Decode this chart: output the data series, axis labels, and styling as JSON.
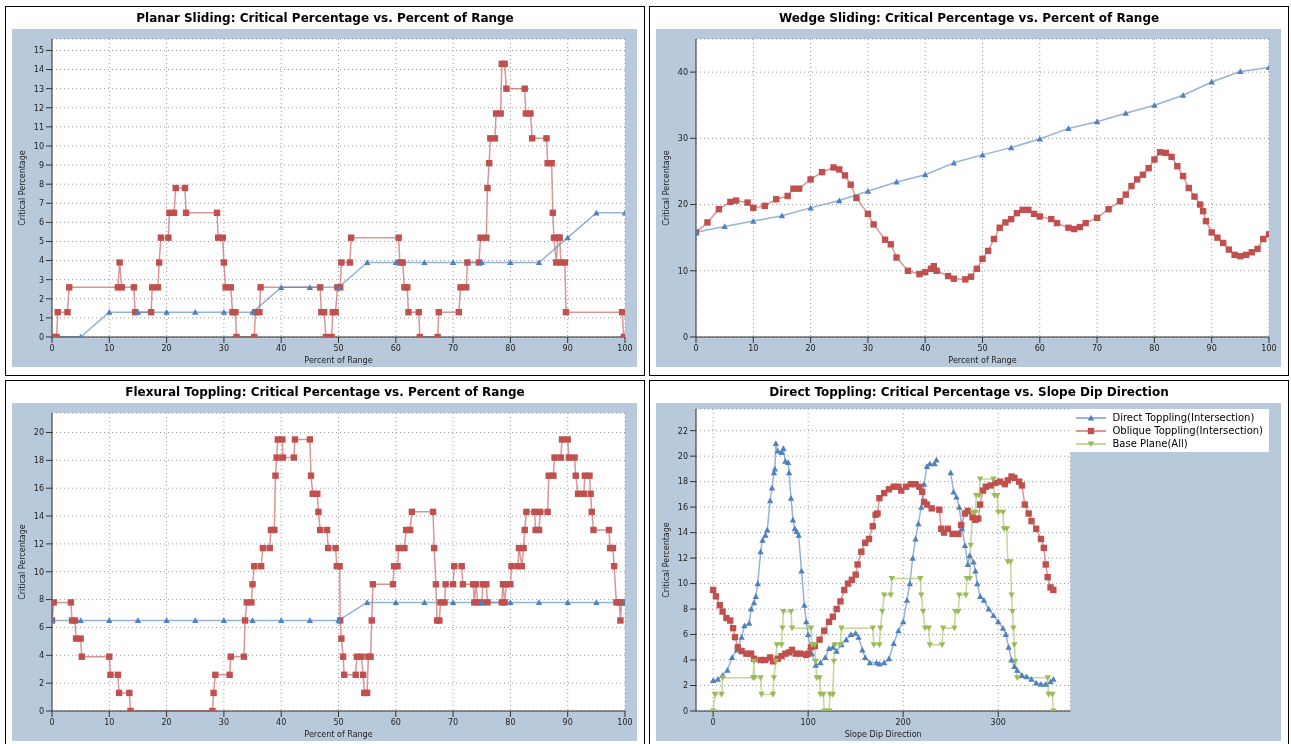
{
  "chart_data": [
    {
      "type": "line",
      "title": "Planar Sliding: Critical Percentage vs. Percent of Range",
      "xlabel": "Percent of Range",
      "ylabel": "Critical Percentage",
      "xlim": [
        0,
        100
      ],
      "xticks": [
        0,
        10,
        20,
        30,
        40,
        50,
        60,
        70,
        80,
        90,
        100
      ],
      "ylim": [
        0,
        15.6
      ],
      "yticks": [
        0,
        1,
        2,
        3,
        4,
        5,
        6,
        7,
        8,
        9,
        10,
        11,
        12,
        13,
        14,
        15
      ],
      "grid": true,
      "legend": false,
      "series": [
        {
          "color": "#c0504d",
          "marker": "square",
          "x": [
            0,
            0.8,
            1,
            2.7,
            3,
            11.5,
            11.8,
            12.2,
            14.3,
            14.5,
            17.3,
            17.5,
            18.5,
            18.7,
            19,
            20.3,
            20.5,
            21.3,
            21.6,
            23.2,
            23.4,
            28.8,
            29,
            29.8,
            30,
            30.3,
            31.2,
            31.5,
            32,
            32.2,
            35.3,
            35.5,
            36.2,
            36.4,
            46.8,
            47,
            47.5,
            47.8,
            48.8,
            49,
            49.5,
            49.8,
            50.3,
            50.5,
            52,
            52.2,
            60.5,
            60.7,
            61.2,
            61.5,
            62,
            62.2,
            64,
            64.2,
            67.3,
            67.5,
            71,
            71.3,
            72.3,
            72.5,
            74.5,
            74.8,
            75.8,
            76,
            76.3,
            76.5,
            77.3,
            77.5,
            78.3,
            78.5,
            79,
            79.3,
            82.5,
            82.7,
            83.5,
            83.8,
            86.3,
            86.5,
            87.2,
            87.4,
            87.6,
            88,
            88.3,
            88.6,
            88.8,
            89.5,
            89.7,
            99.5,
            99.8,
            100
          ],
          "values": [
            0,
            0,
            1.3,
            1.3,
            2.6,
            2.6,
            3.9,
            2.6,
            2.6,
            1.3,
            1.3,
            2.6,
            2.6,
            3.9,
            5.2,
            5.2,
            6.5,
            6.5,
            7.8,
            7.8,
            6.5,
            6.5,
            5.2,
            5.2,
            3.9,
            2.6,
            2.6,
            1.3,
            1.3,
            0,
            0,
            1.3,
            1.3,
            2.6,
            2.6,
            1.3,
            1.3,
            0,
            0,
            1.3,
            1.3,
            2.6,
            2.6,
            3.9,
            3.9,
            5.2,
            5.2,
            3.9,
            3.9,
            2.6,
            2.6,
            1.3,
            1.3,
            0,
            0,
            1.3,
            1.3,
            2.6,
            2.6,
            3.9,
            3.9,
            5.2,
            5.2,
            7.8,
            9.1,
            10.4,
            10.4,
            11.7,
            11.7,
            14.3,
            14.3,
            13,
            13,
            11.7,
            11.7,
            10.4,
            10.4,
            9.1,
            9.1,
            6.5,
            5.2,
            3.9,
            5.2,
            5.2,
            3.9,
            3.9,
            1.3,
            1.3,
            0,
            0
          ]
        },
        {
          "color": "#4f81bd",
          "marker": "triangle",
          "x": [
            0,
            5,
            10,
            15,
            20,
            25,
            30,
            35,
            40,
            45,
            50,
            55,
            60,
            65,
            70,
            75,
            80,
            85,
            90,
            95,
            100
          ],
          "values": [
            0,
            0,
            1.3,
            1.3,
            1.3,
            1.3,
            1.3,
            1.3,
            2.6,
            2.6,
            2.6,
            3.9,
            3.9,
            3.9,
            3.9,
            3.9,
            3.9,
            3.9,
            5.2,
            6.5,
            6.5
          ]
        }
      ]
    },
    {
      "type": "line",
      "title": "Wedge Sliding: Critical Percentage vs. Percent of Range",
      "xlabel": "Percent of Range",
      "ylabel": "Critical Percentage",
      "xlim": [
        0,
        100
      ],
      "xticks": [
        0,
        10,
        20,
        30,
        40,
        50,
        60,
        70,
        80,
        90,
        100
      ],
      "ylim": [
        0,
        45
      ],
      "yticks": [
        0,
        10,
        20,
        30,
        40
      ],
      "grid": true,
      "legend": false,
      "series": [
        {
          "color": "#c0504d",
          "marker": "square",
          "x": [
            0,
            2,
            4,
            6,
            7,
            9,
            10,
            12,
            14,
            16,
            17,
            18,
            20,
            22,
            24,
            25,
            26,
            27,
            28,
            30,
            31,
            33,
            34,
            35,
            37,
            39,
            40,
            41,
            41.5,
            42,
            44,
            45,
            47,
            48,
            49,
            50,
            51,
            52,
            53,
            54,
            55,
            56,
            57,
            58,
            59,
            60,
            62,
            63,
            65,
            66,
            67,
            68,
            70,
            72,
            74,
            75,
            76,
            77,
            78,
            79,
            80,
            81,
            82,
            83,
            84,
            85,
            86,
            87,
            88,
            88.5,
            89,
            90,
            91,
            92,
            93,
            94,
            95,
            96,
            97,
            98,
            99,
            100
          ],
          "values": [
            15.8,
            17.3,
            19.3,
            20.4,
            20.6,
            20.3,
            19.5,
            19.8,
            20.8,
            21.3,
            22.4,
            22.4,
            23.8,
            24.9,
            25.6,
            25.3,
            24.4,
            23,
            21,
            18.6,
            17,
            14.7,
            14,
            12,
            10,
            9.5,
            9.8,
            10.3,
            10.7,
            10,
            9.2,
            8.8,
            8.7,
            9.1,
            10.3,
            11.8,
            13,
            14.8,
            16.5,
            17.3,
            17.8,
            18.7,
            19.2,
            19.2,
            18.6,
            18.2,
            17.8,
            17.2,
            16.5,
            16.3,
            16.6,
            17.2,
            18,
            19.3,
            20.5,
            21.5,
            22.8,
            23.8,
            24.5,
            25.5,
            26.8,
            27.9,
            27.8,
            27.2,
            25.8,
            24.3,
            22.5,
            21.2,
            20,
            19,
            17.5,
            15.8,
            15,
            14.2,
            13.2,
            12.4,
            12.2,
            12.4,
            12.8,
            13.3,
            14.8,
            15.5
          ]
        },
        {
          "color": "#4f81bd",
          "marker": "triangle",
          "x": [
            0,
            5,
            10,
            15,
            20,
            25,
            30,
            35,
            40,
            45,
            50,
            55,
            60,
            65,
            70,
            75,
            80,
            85,
            90,
            95,
            100
          ],
          "values": [
            15.8,
            16.7,
            17.5,
            18.3,
            19.5,
            20.6,
            22,
            23.4,
            24.5,
            26.3,
            27.5,
            28.6,
            29.9,
            31.5,
            32.5,
            33.8,
            35,
            36.5,
            38.5,
            40.1,
            40.7
          ]
        }
      ]
    },
    {
      "type": "line",
      "title": "Flexural Toppling: Critical Percentage vs. Percent of Range",
      "xlabel": "Percent of Range",
      "ylabel": "Critical Percentage",
      "xlim": [
        0,
        100
      ],
      "xticks": [
        0,
        10,
        20,
        30,
        40,
        50,
        60,
        70,
        80,
        90,
        100
      ],
      "ylim": [
        0,
        21.4
      ],
      "yticks": [
        0,
        2,
        4,
        6,
        8,
        10,
        12,
        14,
        16,
        18,
        20
      ],
      "grid": true,
      "legend": false,
      "series": [
        {
          "color": "#c0504d",
          "marker": "square",
          "x": [
            0,
            0.3,
            3.3,
            3.5,
            4,
            4.2,
            5,
            5.2,
            10,
            10.2,
            11.5,
            11.7,
            13.5,
            13.7,
            28,
            28.2,
            28.5,
            31,
            31.2,
            33.5,
            33.7,
            34,
            34.8,
            35,
            35.3,
            36.5,
            36.8,
            38,
            38.2,
            38.8,
            39,
            39.2,
            39.4,
            40.2,
            40.3,
            42.2,
            42.4,
            45,
            45.2,
            45.5,
            46.3,
            46.5,
            46.8,
            48,
            48.2,
            49.5,
            49.7,
            50.2,
            50.3,
            50.5,
            50.8,
            51,
            53,
            53.2,
            54,
            54.3,
            54.5,
            55,
            55.2,
            55.6,
            55.8,
            56,
            59.5,
            59.7,
            60.3,
            60.5,
            61.5,
            61.8,
            62.5,
            62.8,
            66.5,
            66.7,
            67,
            67.2,
            67.6,
            67.8,
            68.5,
            68.7,
            70,
            70.2,
            71.5,
            71.7,
            73.5,
            73.7,
            74,
            74.3,
            75,
            75.2,
            75.8,
            76,
            78.5,
            78.7,
            79,
            79.3,
            80,
            80.2,
            81.3,
            81.5,
            82,
            82.3,
            82.5,
            82.8,
            84.2,
            84.4,
            85,
            85.2,
            86.5,
            86.7,
            87.5,
            87.7,
            88.8,
            89,
            90,
            90.2,
            91.2,
            91.4,
            91.8,
            92.8,
            93,
            93.8,
            94,
            94.2,
            94.5,
            97.2,
            97.4,
            97.9,
            98.1,
            98.5,
            99,
            99.2,
            99.4,
            100
          ],
          "values": [
            6.5,
            7.8,
            7.8,
            6.5,
            6.5,
            5.2,
            5.2,
            3.9,
            3.9,
            2.6,
            2.6,
            1.3,
            1.3,
            0,
            0,
            1.3,
            2.6,
            2.6,
            3.9,
            3.9,
            6.5,
            7.8,
            7.8,
            9.1,
            10.4,
            10.4,
            11.7,
            11.7,
            13,
            13,
            16.9,
            18.2,
            19.5,
            19.5,
            18.2,
            18.2,
            19.5,
            19.5,
            16.9,
            15.6,
            15.6,
            14.3,
            13,
            13,
            11.7,
            11.7,
            10.4,
            10.4,
            6.5,
            5.2,
            3.9,
            2.6,
            2.6,
            3.9,
            3.9,
            2.6,
            1.3,
            1.3,
            3.9,
            3.9,
            6.5,
            9.1,
            9.1,
            10.4,
            10.4,
            11.7,
            11.7,
            13,
            13,
            14.3,
            14.3,
            11.7,
            9.1,
            6.5,
            6.5,
            7.8,
            7.8,
            9.1,
            9.1,
            10.4,
            10.4,
            9.1,
            9.1,
            7.8,
            9.1,
            7.8,
            7.8,
            9.1,
            9.1,
            7.8,
            7.8,
            9.1,
            7.8,
            9.1,
            9.1,
            10.4,
            10.4,
            11.7,
            10.4,
            11.7,
            13,
            14.3,
            14.3,
            13,
            13,
            14.3,
            14.3,
            16.9,
            16.9,
            18.2,
            18.2,
            19.5,
            19.5,
            18.2,
            18.2,
            16.9,
            15.6,
            15.6,
            16.9,
            16.9,
            15.6,
            14.3,
            13,
            13,
            11.7,
            11.7,
            10.4,
            7.8,
            7.8,
            6.5,
            7.8,
            7.8
          ]
        },
        {
          "color": "#4f81bd",
          "marker": "triangle",
          "x": [
            0,
            5,
            10,
            15,
            20,
            25,
            30,
            35,
            40,
            45,
            50,
            55,
            60,
            65,
            70,
            75,
            80,
            85,
            90,
            95,
            100
          ],
          "values": [
            6.5,
            6.5,
            6.5,
            6.5,
            6.5,
            6.5,
            6.5,
            6.5,
            6.5,
            6.5,
            6.5,
            7.8,
            7.8,
            7.8,
            7.8,
            7.8,
            7.8,
            7.8,
            7.8,
            7.8,
            7.8
          ]
        }
      ]
    },
    {
      "type": "line",
      "title": "Direct Toppling: Critical Percentage vs. Slope Dip Direction",
      "xlabel": "Slope Dip Direction",
      "ylabel": "Critical Percentage",
      "xlim": [
        -18,
        376
      ],
      "xticks": [
        0,
        100,
        200,
        300
      ],
      "ylim": [
        0,
        23.7
      ],
      "yticks": [
        0,
        2,
        4,
        6,
        8,
        10,
        12,
        14,
        16,
        18,
        20,
        22
      ],
      "grid": true,
      "legend": "top right",
      "series": [
        {
          "name": "Direct Toppling(Intersection)",
          "color": "#4f81bd",
          "marker": "triangle",
          "x": [
            0,
            5,
            10,
            15,
            20,
            25,
            30,
            33,
            38,
            40,
            43,
            45,
            47,
            50,
            52,
            55,
            57,
            60,
            62,
            64,
            65,
            66,
            68,
            72,
            74,
            76,
            79,
            80,
            82,
            84,
            86,
            88,
            90,
            93,
            96,
            98,
            100,
            102,
            104,
            108,
            113,
            118,
            122,
            126,
            130,
            135,
            140,
            145,
            150,
            153,
            157,
            160,
            165,
            172,
            175,
            180,
            185,
            190,
            195,
            200,
            204,
            207,
            210,
            213,
            216,
            219,
            222,
            225,
            228,
            233,
            235,
            242,
            250,
            253,
            256,
            259,
            262,
            265,
            268,
            270,
            274,
            276,
            278,
            281,
            285,
            290,
            295,
            300,
            305,
            308,
            311,
            314,
            317,
            320,
            325,
            330,
            335,
            340,
            345,
            350,
            355,
            358
          ],
          "values": [
            2.4,
            2.5,
            2.8,
            3.2,
            4.2,
            4.8,
            5.8,
            6.7,
            6.9,
            8,
            8.5,
            9,
            10,
            12.5,
            13.4,
            13.8,
            14.2,
            16.5,
            17.5,
            18.7,
            19,
            21,
            20.4,
            20.3,
            20.6,
            19.6,
            19.5,
            18.7,
            16.7,
            15,
            14.3,
            14.1,
            13.8,
            11,
            8.3,
            7,
            6,
            5,
            4.5,
            3.6,
            3.8,
            4.2,
            4.9,
            5,
            4.7,
            5.2,
            5.6,
            6,
            6.1,
            5.8,
            4.8,
            4.2,
            3.8,
            3.8,
            3.7,
            3.8,
            4.1,
            5.3,
            6.3,
            7,
            8.7,
            10,
            12,
            13.5,
            14.7,
            16,
            17.8,
            19.2,
            19.4,
            19.4,
            19.7,
            null,
            18.7,
            17.2,
            16.8,
            16,
            14.3,
            13,
            11.5,
            12.2,
            11.7,
            11,
            10,
            9,
            8.7,
            8,
            7.5,
            7,
            6.5,
            6,
            5,
            4,
            3.5,
            3.2,
            2.8,
            2.7,
            2.5,
            2.2,
            2.1,
            2.1,
            2.3,
            2.5
          ]
        },
        {
          "name": "Oblique Toppling(Intersection)",
          "color": "#c0504d",
          "marker": "square",
          "x": [
            0,
            3,
            7,
            10,
            14,
            18,
            21,
            23,
            26,
            30,
            35,
            40,
            43,
            50,
            55,
            60,
            63,
            68,
            72,
            76,
            80,
            83,
            87,
            92,
            98,
            100,
            103,
            107,
            112,
            117,
            122,
            126,
            130,
            134,
            138,
            142,
            146,
            150,
            152,
            156,
            160,
            164,
            168,
            171,
            173,
            175,
            180,
            185,
            190,
            195,
            198,
            203,
            208,
            213,
            217,
            220,
            222,
            225,
            230,
            238,
            240,
            243,
            247,
            252,
            258,
            261,
            265,
            268,
            273,
            276,
            279,
            281,
            284,
            287,
            292,
            297,
            302,
            307,
            310,
            314,
            317,
            322,
            325,
            328,
            332,
            335,
            340,
            345,
            348,
            350,
            352,
            355,
            358
          ],
          "values": [
            9.5,
            9,
            8.3,
            7.8,
            7.3,
            7.1,
            6.5,
            5.8,
            5,
            4.7,
            4.5,
            4.5,
            4.1,
            4,
            4,
            4.2,
            3.9,
            4.1,
            4.3,
            4.5,
            4.6,
            4.8,
            4.5,
            4.5,
            4.4,
            4.5,
            5,
            5.1,
            5.6,
            6.3,
            7,
            7.4,
            8,
            8.6,
            9.5,
            10,
            10.3,
            10.7,
            11.5,
            12.5,
            13.2,
            13.5,
            14.5,
            15.4,
            15.5,
            16.7,
            17.1,
            17.4,
            17.6,
            17.6,
            17.3,
            17.6,
            17.8,
            17.8,
            17.6,
            17.2,
            16.4,
            16.2,
            15.9,
            15.8,
            14.3,
            14,
            14.3,
            13.9,
            13.9,
            14.6,
            15.5,
            15.7,
            15.2,
            15,
            15.1,
            16.2,
            17.3,
            17.6,
            17.7,
            17.9,
            18,
            17.8,
            18.1,
            18.4,
            18.3,
            18,
            17.7,
            16.2,
            15.5,
            14.9,
            14.3,
            13.5,
            12.8,
            11.5,
            10.5,
            9.7,
            9.5
          ]
        },
        {
          "name": "Base Plane(All)",
          "color": "#9bbb59",
          "marker": "triangle-down",
          "x": [
            0,
            2,
            9,
            10,
            42,
            43,
            43.5,
            50,
            51,
            63,
            64,
            66,
            67,
            72,
            73,
            74,
            82,
            83,
            103,
            104,
            107,
            108,
            109,
            112,
            113,
            116,
            117,
            122,
            123,
            126,
            127,
            128,
            134,
            135,
            168,
            169,
            175,
            176,
            178,
            180,
            187,
            188,
            218,
            219,
            221,
            223,
            227,
            228,
            241,
            242,
            254,
            255,
            258,
            259,
            266,
            267,
            270,
            271,
            273,
            276,
            277,
            280,
            281,
            295,
            296,
            299,
            300,
            305,
            306,
            309,
            310,
            313,
            314,
            315,
            316,
            317,
            318,
            320,
            352,
            353,
            357,
            358
          ],
          "values": [
            0,
            1.3,
            1.3,
            2.6,
            2.6,
            3.9,
            2.6,
            2.6,
            1.3,
            1.3,
            2.6,
            3.9,
            5.2,
            5.2,
            6.5,
            7.8,
            7.8,
            6.5,
            6.5,
            5.2,
            5.2,
            3.9,
            2.6,
            2.6,
            1.3,
            1.3,
            0,
            0,
            1.3,
            1.3,
            3.9,
            5.2,
            5.2,
            6.5,
            6.5,
            5.2,
            5.2,
            6.5,
            7.8,
            9.1,
            9.1,
            10.4,
            10.4,
            9.1,
            7.8,
            6.5,
            6.5,
            5.2,
            5.2,
            6.5,
            6.5,
            7.8,
            7.8,
            9.1,
            9.1,
            10.4,
            10.4,
            13,
            15.6,
            15.6,
            16.9,
            16.9,
            18.2,
            18.2,
            16.9,
            16.9,
            15.6,
            15.6,
            14.3,
            14.3,
            11.7,
            11.7,
            9.1,
            7.8,
            6.5,
            5.2,
            3.9,
            2.6,
            2.6,
            1.3,
            1.3,
            0
          ]
        }
      ]
    }
  ]
}
